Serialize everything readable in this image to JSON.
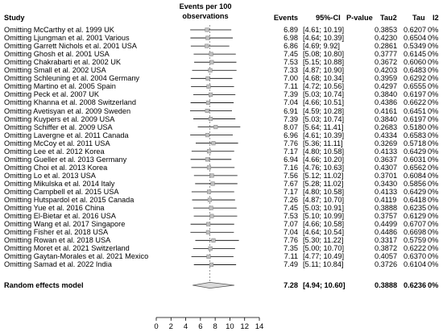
{
  "headers": {
    "study": "Study",
    "events_per_100_line1": "Events per 100",
    "events_per_100_line2": "observations",
    "events": "Events",
    "ci": "95%-CI",
    "pvalue": "P-value",
    "tau2": "Tau2",
    "tau": "Tau",
    "i2": "I2"
  },
  "rows": [
    {
      "study": "Omitting McCarthy et al. 1999 UK",
      "events": "6.89",
      "ci": "[4.61; 10.19]",
      "pvalue": "",
      "tau2": "0.3853",
      "tau": "0.6207",
      "i2": "0%"
    },
    {
      "study": "Omitting Ljungman et al. 2001 Various",
      "events": "6.98",
      "ci": "[4.64; 10.39]",
      "pvalue": "",
      "tau2": "0.4230",
      "tau": "0.6504",
      "i2": "0%"
    },
    {
      "study": "Omitting Garrett Nichols et al. 2001 USA",
      "events": "6.86",
      "ci": "[4.69;  9.92]",
      "pvalue": "",
      "tau2": "0.2861",
      "tau": "0.5349",
      "i2": "0%"
    },
    {
      "study": "Omitting Ghosh et al. 2001 USA",
      "events": "7.45",
      "ci": "[5.08; 10.80]",
      "pvalue": "",
      "tau2": "0.3777",
      "tau": "0.6145",
      "i2": "0%"
    },
    {
      "study": "Omitting Chakrabarti et al. 2002 UK",
      "events": "7.53",
      "ci": "[5.15; 10.88]",
      "pvalue": "",
      "tau2": "0.3672",
      "tau": "0.6060",
      "i2": "0%"
    },
    {
      "study": "Omitting Small et al. 2002 USA",
      "events": "7.33",
      "ci": "[4.87; 10.90]",
      "pvalue": "",
      "tau2": "0.4203",
      "tau": "0.6483",
      "i2": "0%"
    },
    {
      "study": "Omitting Schleuning et al. 2004 Germany",
      "events": "7.00",
      "ci": "[4.68; 10.34]",
      "pvalue": "",
      "tau2": "0.3959",
      "tau": "0.6292",
      "i2": "0%"
    },
    {
      "study": "Omitting Martino et al. 2005 Spain",
      "events": "7.11",
      "ci": "[4.72; 10.56]",
      "pvalue": "",
      "tau2": "0.4297",
      "tau": "0.6555",
      "i2": "0%"
    },
    {
      "study": "Omitting Peck et al. 2007 UK",
      "events": "7.39",
      "ci": "[5.03; 10.74]",
      "pvalue": "",
      "tau2": "0.3840",
      "tau": "0.6197",
      "i2": "0%"
    },
    {
      "study": "Omitting Khanna et al. 2008 Switzerland",
      "events": "7.04",
      "ci": "[4.66; 10.51]",
      "pvalue": "",
      "tau2": "0.4386",
      "tau": "0.6622",
      "i2": "0%"
    },
    {
      "study": "Omitting Avetisyan et al. 2009 Sweden",
      "events": "6.91",
      "ci": "[4.59; 10.28]",
      "pvalue": "",
      "tau2": "0.4161",
      "tau": "0.6451",
      "i2": "0%"
    },
    {
      "study": "Omitting Kuypers et al. 2009 USA",
      "events": "7.39",
      "ci": "[5.03; 10.74]",
      "pvalue": "",
      "tau2": "0.3840",
      "tau": "0.6197",
      "i2": "0%"
    },
    {
      "study": "Omitting Schiffer et al. 2009 USA",
      "events": "8.07",
      "ci": "[5.64; 11.41]",
      "pvalue": "",
      "tau2": "0.2683",
      "tau": "0.5180",
      "i2": "0%"
    },
    {
      "study": "Omitting Lavergne et al. 2011 Canada",
      "events": "6.96",
      "ci": "[4.61; 10.39]",
      "pvalue": "",
      "tau2": "0.4334",
      "tau": "0.6583",
      "i2": "0%"
    },
    {
      "study": "Omitting McCoy et al. 2011 USA",
      "events": "7.76",
      "ci": "[5.36; 11.11]",
      "pvalue": "",
      "tau2": "0.3269",
      "tau": "0.5718",
      "i2": "0%"
    },
    {
      "study": "Omitting Lee et al. 2012 Korea",
      "events": "7.17",
      "ci": "[4.80; 10.58]",
      "pvalue": "",
      "tau2": "0.4133",
      "tau": "0.6429",
      "i2": "0%"
    },
    {
      "study": "Omitting Gueller et al. 2013 Germany",
      "events": "6.94",
      "ci": "[4.66; 10.20]",
      "pvalue": "",
      "tau2": "0.3637",
      "tau": "0.6031",
      "i2": "0%"
    },
    {
      "study": "Omitting Choi et al. 2013 Korea",
      "events": "7.16",
      "ci": "[4.76; 10.63]",
      "pvalue": "",
      "tau2": "0.4307",
      "tau": "0.6562",
      "i2": "0%"
    },
    {
      "study": "Omitting Lo et al. 2013 USA",
      "events": "7.56",
      "ci": "[5.12; 11.02]",
      "pvalue": "",
      "tau2": "0.3701",
      "tau": "0.6084",
      "i2": "0%"
    },
    {
      "study": "Omitting Mikulska et al. 2014 Italy",
      "events": "7.67",
      "ci": "[5.28; 11.02]",
      "pvalue": "",
      "tau2": "0.3430",
      "tau": "0.5856",
      "i2": "0%"
    },
    {
      "study": "Omitting Campbell et al. 2015 USA",
      "events": "7.17",
      "ci": "[4.80; 10.58]",
      "pvalue": "",
      "tau2": "0.4133",
      "tau": "0.6429",
      "i2": "0%"
    },
    {
      "study": "Omitting Hutspardol et al. 2015 Canada",
      "events": "7.26",
      "ci": "[4.87; 10.70]",
      "pvalue": "",
      "tau2": "0.4119",
      "tau": "0.6418",
      "i2": "0%"
    },
    {
      "study": "Omitting Yue et al. 2016 China",
      "events": "7.45",
      "ci": "[5.03; 10.91]",
      "pvalue": "",
      "tau2": "0.3888",
      "tau": "0.6235",
      "i2": "0%"
    },
    {
      "study": "Omitting El-Bietar et al. 2016 USA",
      "events": "7.53",
      "ci": "[5.10; 10.99]",
      "pvalue": "",
      "tau2": "0.3757",
      "tau": "0.6129",
      "i2": "0%"
    },
    {
      "study": "Omitting Wang et al. 2017 Singapore",
      "events": "7.07",
      "ci": "[4.66; 10.58]",
      "pvalue": "",
      "tau2": "0.4499",
      "tau": "0.6707",
      "i2": "0%"
    },
    {
      "study": "Omitting Fisher et al. 2018 USA",
      "events": "7.04",
      "ci": "[4.64; 10.54]",
      "pvalue": "",
      "tau2": "0.4486",
      "tau": "0.6698",
      "i2": "0%"
    },
    {
      "study": "Omitting Rowan et al. 2018 USA",
      "events": "7.76",
      "ci": "[5.30; 11.22]",
      "pvalue": "",
      "tau2": "0.3317",
      "tau": "0.5759",
      "i2": "0%"
    },
    {
      "study": "Omitting Moret et al. 2021 Switzerland",
      "events": "7.35",
      "ci": "[5.00; 10.70]",
      "pvalue": "",
      "tau2": "0.3872",
      "tau": "0.6222",
      "i2": "0%"
    },
    {
      "study": "Omitting Gaytan-Morales et al. 2021 Mexico",
      "events": "7.11",
      "ci": "[4.77; 10.49]",
      "pvalue": "",
      "tau2": "0.4057",
      "tau": "0.6370",
      "i2": "0%"
    },
    {
      "study": "Omitting Samad et al. 2022 India",
      "events": "7.49",
      "ci": "[5.11; 10.84]",
      "pvalue": "",
      "tau2": "0.3726",
      "tau": "0.6104",
      "i2": "0%"
    }
  ],
  "summary": {
    "study": "Random effects model",
    "events": "7.28",
    "ci": "[4.94; 10.60]",
    "pvalue": "",
    "tau2": "0.3888",
    "tau": "0.6236",
    "i2": "0%"
  },
  "colors": {
    "box": "#bfbfbf",
    "box_border": "#808080",
    "ci_line": "#000000",
    "diamond": "#d9d9d9",
    "ref_line": "#7f7f7f"
  },
  "chart_data": {
    "type": "forest",
    "xlim": [
      0,
      14
    ],
    "x_ticks": [
      0,
      2,
      4,
      6,
      8,
      10,
      12,
      14
    ],
    "xlabel": "",
    "reference_line": 7.28,
    "estimates": [
      6.89,
      6.98,
      6.86,
      7.45,
      7.53,
      7.33,
      7.0,
      7.11,
      7.39,
      7.04,
      6.91,
      7.39,
      8.07,
      6.96,
      7.76,
      7.17,
      6.94,
      7.16,
      7.56,
      7.67,
      7.17,
      7.26,
      7.45,
      7.53,
      7.07,
      7.04,
      7.76,
      7.35,
      7.11,
      7.49
    ],
    "lower": [
      4.61,
      4.64,
      4.69,
      5.08,
      5.15,
      4.87,
      4.68,
      4.72,
      5.03,
      4.66,
      4.59,
      5.03,
      5.64,
      4.61,
      5.36,
      4.8,
      4.66,
      4.76,
      5.12,
      5.28,
      4.8,
      4.87,
      5.03,
      5.1,
      4.66,
      4.64,
      5.3,
      5.0,
      4.77,
      5.11
    ],
    "upper": [
      10.19,
      10.39,
      9.92,
      10.8,
      10.88,
      10.9,
      10.34,
      10.56,
      10.74,
      10.51,
      10.28,
      10.74,
      11.41,
      10.39,
      11.11,
      10.58,
      10.2,
      10.63,
      11.02,
      11.02,
      10.58,
      10.7,
      10.91,
      10.99,
      10.58,
      10.54,
      11.22,
      10.7,
      10.49,
      10.84
    ],
    "summary": {
      "estimate": 7.28,
      "lower": 4.94,
      "upper": 10.6
    }
  }
}
